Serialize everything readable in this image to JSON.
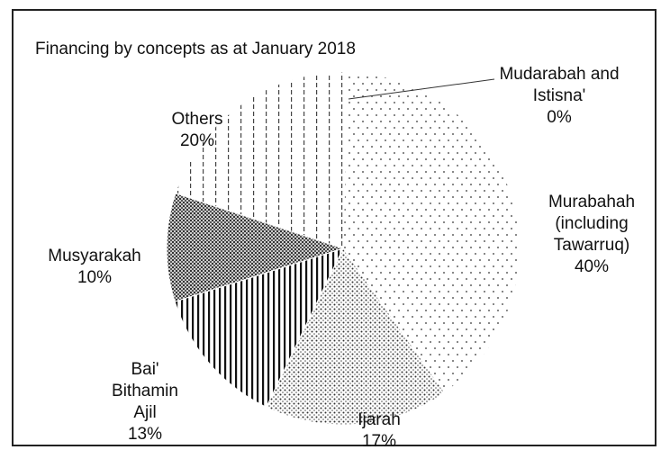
{
  "chart_data": {
    "type": "pie",
    "title": "Financing by concepts as at January 2018",
    "slices": [
      {
        "id": "mudarabah",
        "label_lines": [
          "Mudarabah and",
          "Istisna'"
        ],
        "value_text": "0%",
        "value": 0.4,
        "pattern": "none"
      },
      {
        "id": "murabahah",
        "label_lines": [
          "Murabahah",
          "(including",
          "Tawarruq)"
        ],
        "value_text": "40%",
        "value": 40,
        "pattern": "dots-sparse"
      },
      {
        "id": "ijarah",
        "label_lines": [
          "Ijarah"
        ],
        "value_text": "17%",
        "value": 17,
        "pattern": "dots-dense"
      },
      {
        "id": "bai-bithamin-ajil",
        "label_lines": [
          "Bai'",
          "Bithamin",
          "Ajil"
        ],
        "value_text": "13%",
        "value": 13,
        "pattern": "vertical-lines-dense"
      },
      {
        "id": "musyarakah",
        "label_lines": [
          "Musyarakah"
        ],
        "value_text": "10%",
        "value": 10,
        "pattern": "crosshatch-dense"
      },
      {
        "id": "others",
        "label_lines": [
          "Others"
        ],
        "value_text": "20%",
        "value": 20,
        "pattern": "vertical-lines-sparse"
      }
    ],
    "start_angle_deg": 90,
    "direction": "clockwise"
  }
}
